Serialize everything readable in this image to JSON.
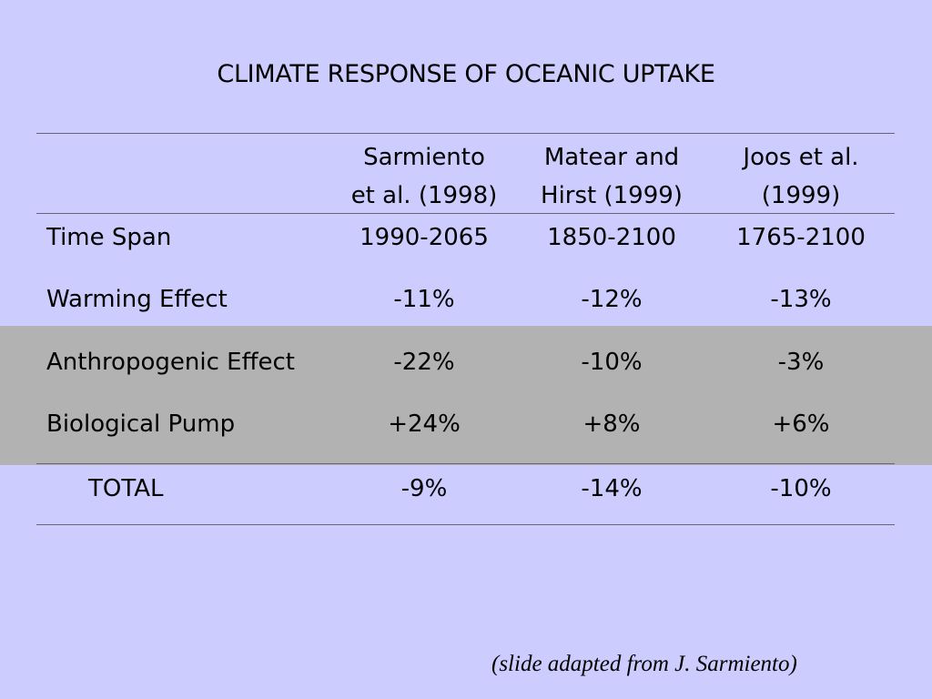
{
  "slide": {
    "title": "CLIMATE RESPONSE OF OCEANIC UPTAKE",
    "credit": "(slide adapted from J. Sarmiento)"
  },
  "table": {
    "columns": [
      {
        "line1": "Sarmiento",
        "line2": "et al. (1998)"
      },
      {
        "line1": "Matear and",
        "line2": "Hirst (1999)"
      },
      {
        "line1": "Joos et al.",
        "line2": "(1999)"
      }
    ],
    "rows": [
      {
        "label": "Time Span",
        "values": [
          "1990-2065",
          "1850-2100",
          "1765-2100"
        ]
      },
      {
        "label": "Warming Effect",
        "values": [
          "-11%",
          "-12%",
          "-13%"
        ]
      },
      {
        "label": "Anthropogenic Effect",
        "values": [
          "-22%",
          "-10%",
          "-3%"
        ]
      },
      {
        "label": "Biological Pump",
        "values": [
          "+24%",
          "+8%",
          "+6%"
        ]
      }
    ],
    "total": {
      "label": "TOTAL",
      "values": [
        "-9%",
        "-14%",
        "-10%"
      ]
    }
  },
  "colors": {
    "background": "#ccccff",
    "highlight_band": "#b2b2b2"
  }
}
